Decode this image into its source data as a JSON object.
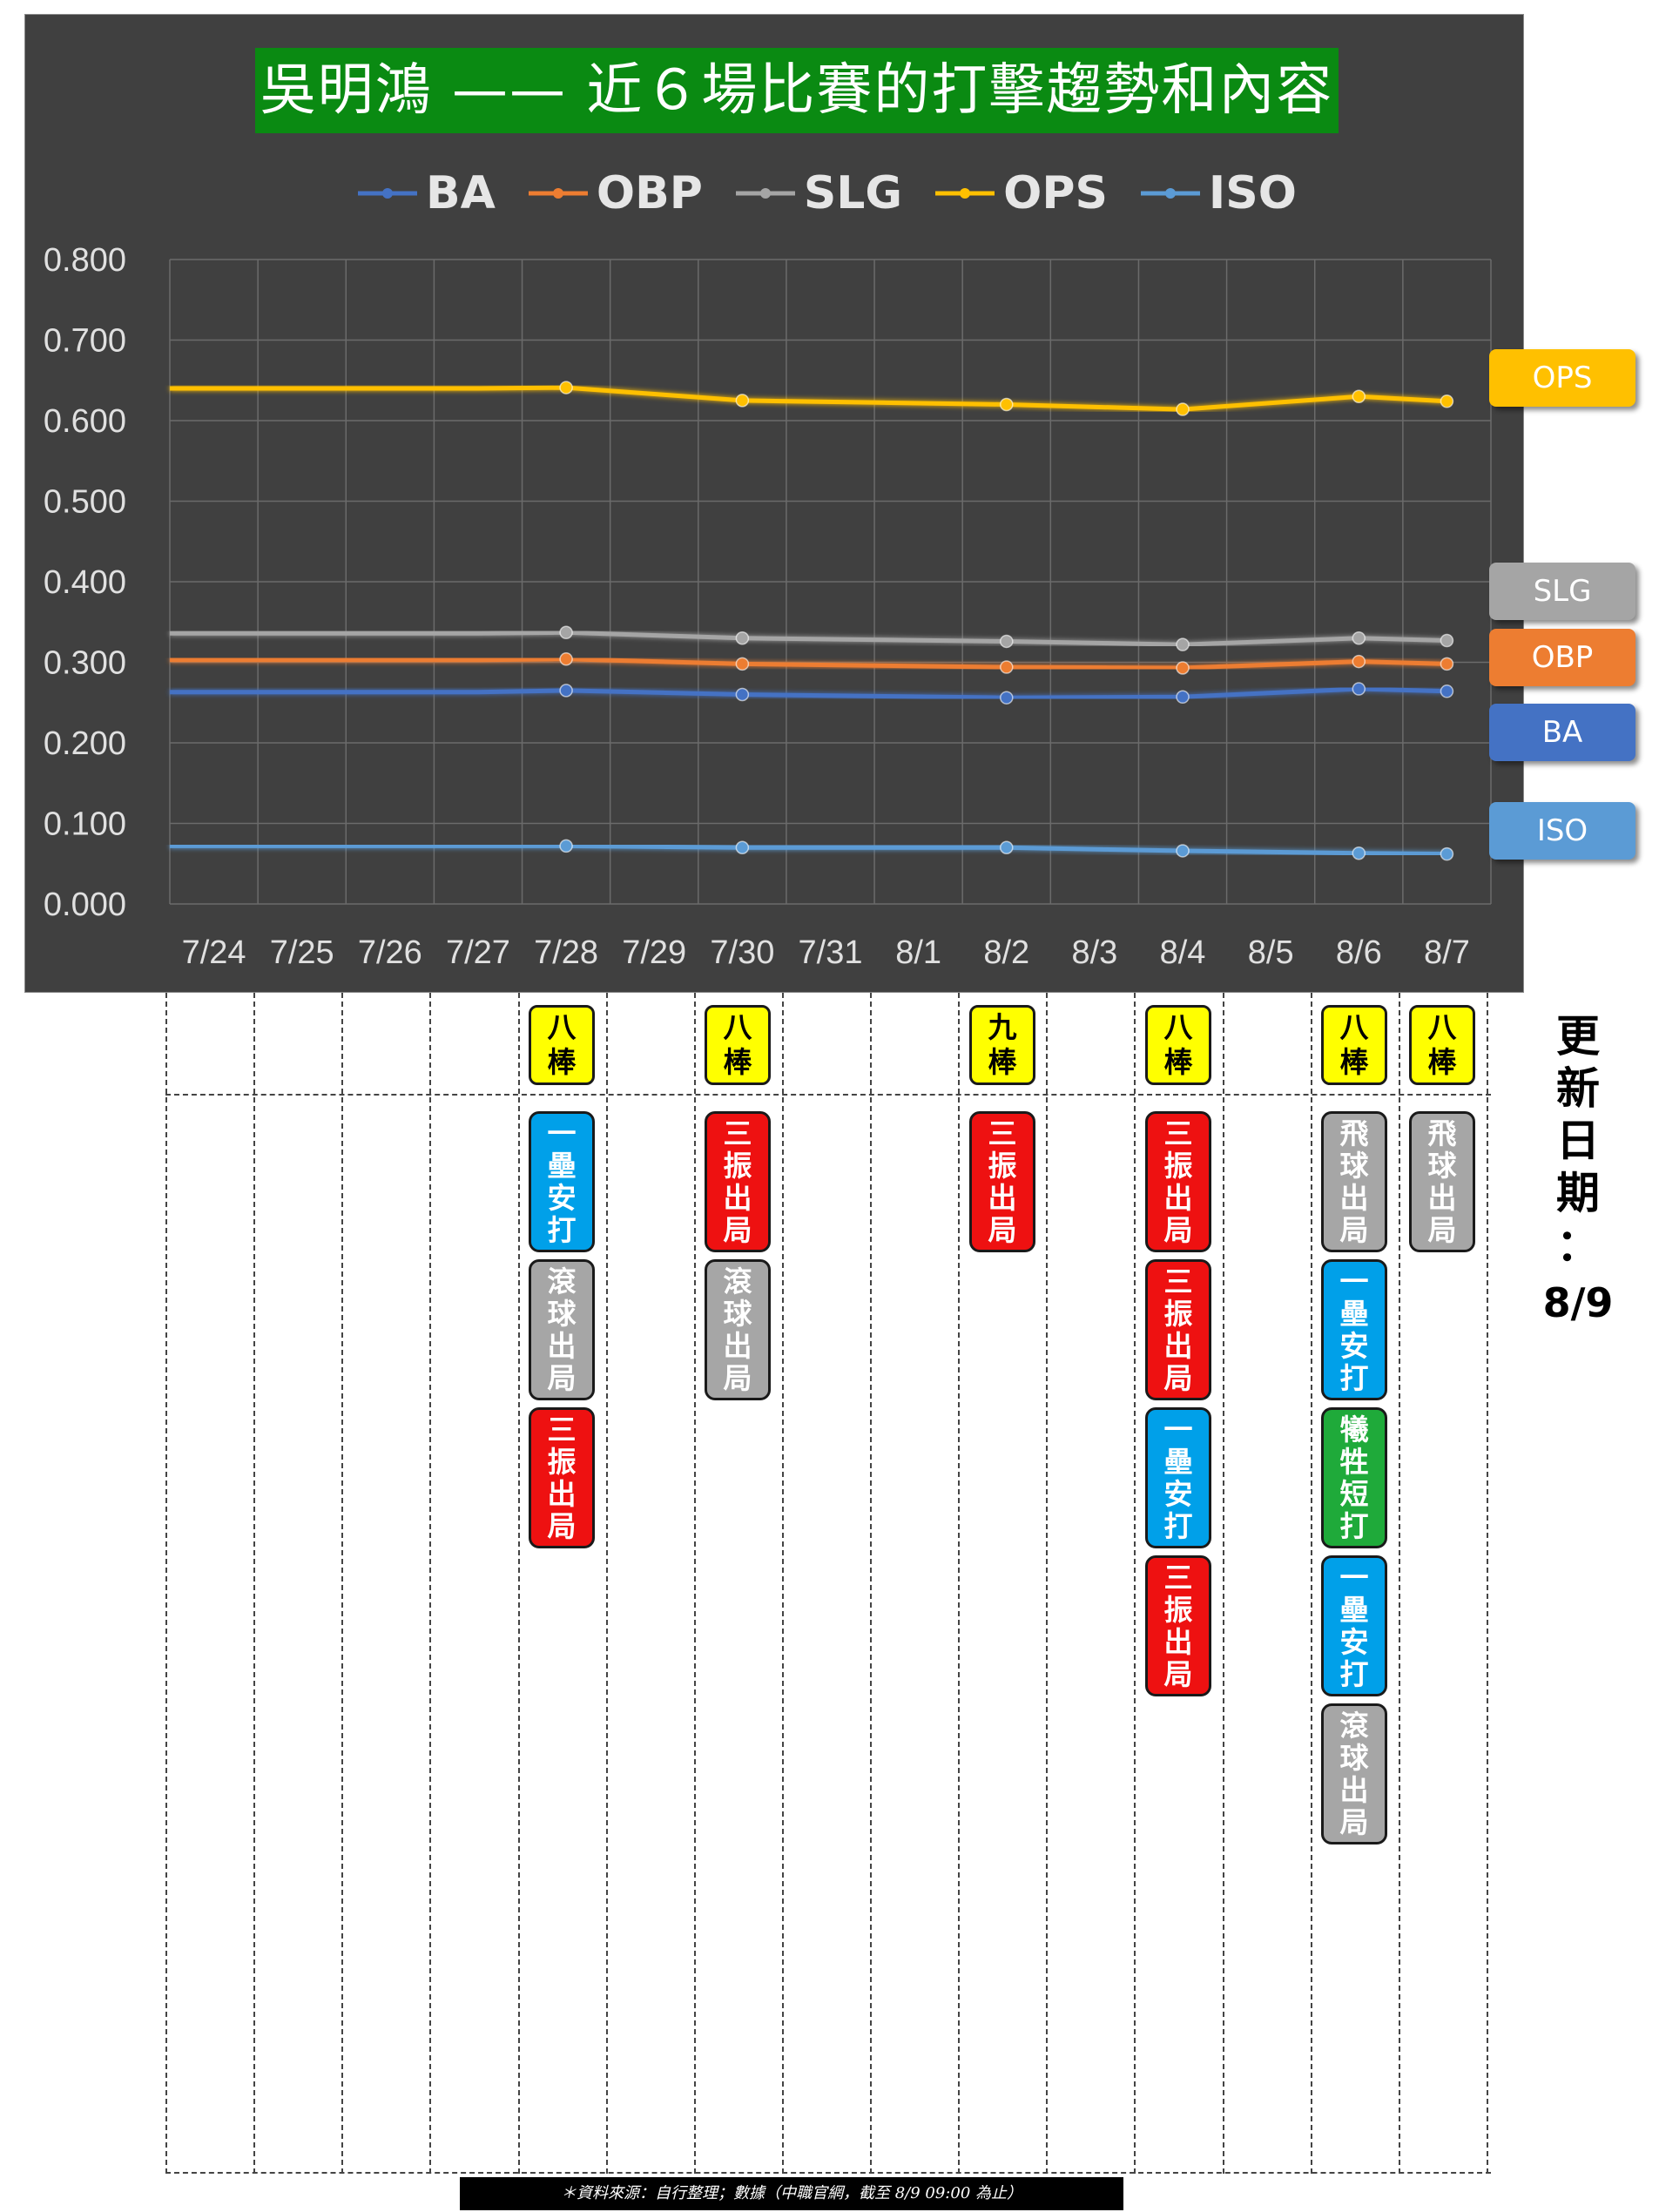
{
  "chart_data": {
    "type": "line",
    "title": "吳明鴻 —— 近６場比賽的打擊趨勢和內容",
    "categories": [
      "7/24",
      "7/25",
      "7/26",
      "7/27",
      "7/28",
      "7/29",
      "7/30",
      "7/31",
      "8/1",
      "8/2",
      "8/3",
      "8/4",
      "8/5",
      "8/6",
      "8/7"
    ],
    "game_dates": [
      "7/28",
      "7/30",
      "8/2",
      "8/4",
      "8/6",
      "8/7"
    ],
    "ylim": [
      0,
      0.8
    ],
    "yticks": [
      "0.000",
      "0.100",
      "0.200",
      "0.300",
      "0.400",
      "0.500",
      "0.600",
      "0.700",
      "0.800"
    ],
    "grid": true,
    "legend_position": "top",
    "series": [
      {
        "name": "BA",
        "color": "#4472c4",
        "values": [
          0.263,
          0.263,
          0.263,
          0.263,
          0.265,
          null,
          0.26,
          null,
          null,
          0.256,
          null,
          0.257,
          null,
          0.267,
          0.264
        ]
      },
      {
        "name": "OBP",
        "color": "#ed7d31",
        "values": [
          0.303,
          0.303,
          0.303,
          0.303,
          0.304,
          null,
          0.298,
          null,
          null,
          0.294,
          null,
          0.293,
          null,
          0.301,
          0.298
        ]
      },
      {
        "name": "SLG",
        "color": "#a5a5a5",
        "values": [
          0.336,
          0.336,
          0.336,
          0.336,
          0.337,
          null,
          0.33,
          null,
          null,
          0.326,
          null,
          0.322,
          null,
          0.33,
          0.327
        ]
      },
      {
        "name": "OPS",
        "color": "#ffc000",
        "values": [
          0.64,
          0.64,
          0.64,
          0.64,
          0.641,
          null,
          0.625,
          null,
          null,
          0.62,
          null,
          0.614,
          null,
          0.63,
          0.624
        ]
      },
      {
        "name": "ISO",
        "color": "#5b9bd5",
        "values": [
          0.072,
          0.072,
          0.072,
          0.072,
          0.072,
          null,
          0.07,
          null,
          null,
          0.07,
          null,
          0.066,
          null,
          0.063,
          0.062
        ]
      }
    ],
    "end_tags": [
      {
        "label": "OPS",
        "color": "#ffc000"
      },
      {
        "label": "SLG",
        "color": "#a5a5a5"
      },
      {
        "label": "OBP",
        "color": "#ed7d31"
      },
      {
        "label": "BA",
        "color": "#4472c4"
      },
      {
        "label": "ISO",
        "color": "#5b9bd5"
      }
    ]
  },
  "outcome_colors": {
    "三振出局": "#ee1111",
    "一壘安打": "#00a0e9",
    "滾球出局": "#a6a6a6",
    "飛球出局": "#a6a6a6",
    "犧牲短打": "#1faa3a"
  },
  "games": [
    {
      "date": "7/28",
      "order": "八\n棒",
      "plate_appearances": [
        "一\n壘\n安\n打",
        "滾\n球\n出\n局",
        "三\n振\n出\n局"
      ],
      "outcomes": [
        "一壘安打",
        "滾球出局",
        "三振出局"
      ]
    },
    {
      "date": "7/30",
      "order": "八\n棒",
      "plate_appearances": [
        "三\n振\n出\n局",
        "滾\n球\n出\n局"
      ],
      "outcomes": [
        "三振出局",
        "滾球出局"
      ]
    },
    {
      "date": "8/2",
      "order": "九\n棒",
      "plate_appearances": [
        "三\n振\n出\n局"
      ],
      "outcomes": [
        "三振出局"
      ]
    },
    {
      "date": "8/4",
      "order": "八\n棒",
      "plate_appearances": [
        "三\n振\n出\n局",
        "三\n振\n出\n局",
        "一\n壘\n安\n打",
        "三\n振\n出\n局"
      ],
      "outcomes": [
        "三振出局",
        "三振出局",
        "一壘安打",
        "三振出局"
      ]
    },
    {
      "date": "8/6",
      "order": "八\n棒",
      "plate_appearances": [
        "飛\n球\n出\n局",
        "一\n壘\n安\n打",
        "犧\n牲\n短\n打",
        "一\n壘\n安\n打",
        "滾\n球\n出\n局"
      ],
      "outcomes": [
        "飛球出局",
        "一壘安打",
        "犧牲短打",
        "一壘安打",
        "滾球出局"
      ]
    },
    {
      "date": "8/7",
      "order": "八\n棒",
      "plate_appearances": [
        "飛\n球\n出\n局"
      ],
      "outcomes": [
        "飛球出局"
      ]
    }
  ],
  "update_note": {
    "chars": "更\n新\n日\n期\n：",
    "date": "8/9"
  },
  "source_note": "＊資料來源：自行整理；數據（中職官網，截至 8/9 09:00 為止）"
}
